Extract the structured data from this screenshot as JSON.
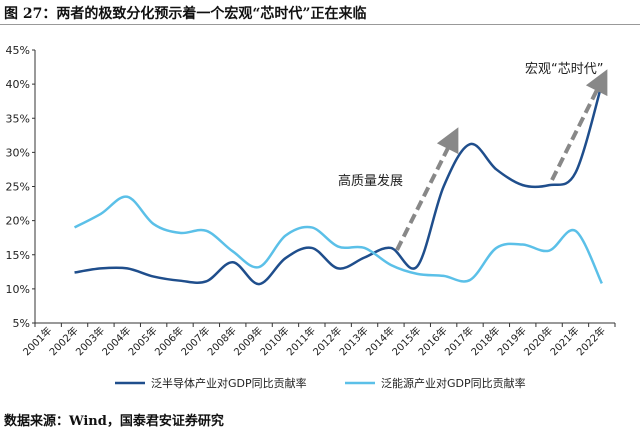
{
  "title": "图 27：两者的极致分化预示着一个宏观“芯时代”正在来临",
  "source": "数据来源：Wind，国泰君安证券研究",
  "chart_data": {
    "type": "line",
    "categories": [
      "2001年",
      "2002年",
      "2003年",
      "2004年",
      "2005年",
      "2006年",
      "2007年",
      "2008年",
      "2009年",
      "2010年",
      "2011年",
      "2012年",
      "2013年",
      "2014年",
      "2015年",
      "2016年",
      "2017年",
      "2018年",
      "2019年",
      "2020年",
      "2021年",
      "2022年"
    ],
    "ylim": [
      5,
      45
    ],
    "yticks": [
      "5%",
      "10%",
      "15%",
      "20%",
      "25%",
      "30%",
      "35%",
      "40%",
      "45%"
    ],
    "series": [
      {
        "name": "泛半导体产业对GDP同比贡献率",
        "color": "#1f4e8c",
        "values": [
          null,
          12.4,
          13.0,
          13.0,
          11.8,
          11.2,
          11.1,
          13.9,
          10.7,
          14.5,
          16.0,
          13.0,
          14.6,
          16.0,
          13.3,
          25.0,
          31.2,
          27.5,
          25.2,
          25.2,
          27.0,
          40.0
        ]
      },
      {
        "name": "泛能源产业对GDP同比贡献率",
        "color": "#5bc0e8",
        "values": [
          null,
          19.0,
          21.0,
          23.5,
          19.5,
          18.2,
          18.5,
          15.5,
          13.2,
          17.8,
          19.0,
          16.2,
          16.0,
          13.5,
          12.2,
          11.9,
          11.3,
          16.0,
          16.5,
          15.6,
          18.5,
          10.8
        ]
      }
    ],
    "annotations": [
      "高质量发展",
      "宏观“芯时代”"
    ],
    "legend": "bottom"
  }
}
